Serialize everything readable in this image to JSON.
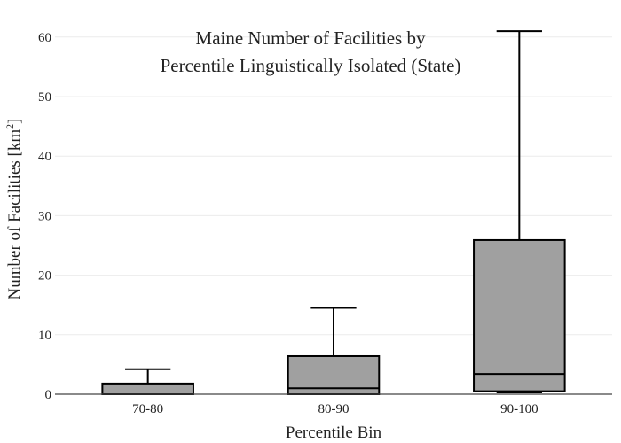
{
  "chart_data": {
    "type": "box",
    "title_lines": [
      "Maine Number of Facilities by",
      "Percentile Linguistically Isolated (State)"
    ],
    "xlabel": "Percentile Bin",
    "ylabel": "Number of Facilities  [km",
    "ylabel_sup": "2",
    "ylabel_close": "]",
    "ylim": [
      0,
      62.5
    ],
    "yticks": [
      0,
      10,
      20,
      30,
      40,
      50,
      60
    ],
    "grid": true,
    "box_color": "#a0a0a0",
    "line_color": "#000000",
    "categories": [
      "70-80",
      "80-90",
      "90-100"
    ],
    "boxes": [
      {
        "label": "70-80",
        "min": 0,
        "q1": 0,
        "median": 0,
        "q3": 1.8,
        "max": 4.2
      },
      {
        "label": "80-90",
        "min": 0,
        "q1": 0,
        "median": 1,
        "q3": 6.4,
        "max": 14.5
      },
      {
        "label": "90-100",
        "min": 0.3,
        "q1": 0.5,
        "median": 3.4,
        "q3": 25.9,
        "max": 61
      }
    ]
  }
}
